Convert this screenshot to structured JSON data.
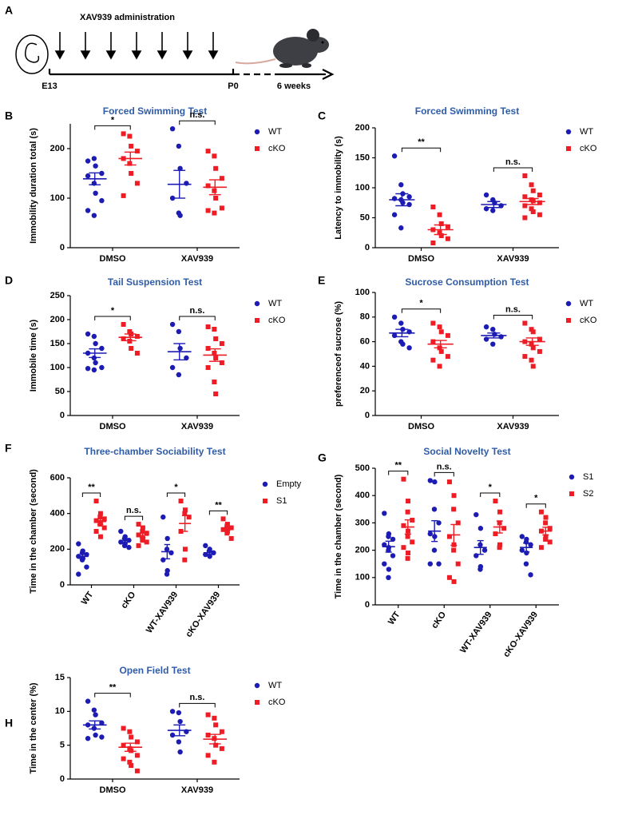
{
  "timeline": {
    "panel_label": "A",
    "title": "XAV939 administration",
    "start": "E13",
    "birth": "P0",
    "end": "6 weeks"
  },
  "chart_data": [
    {
      "type": "scatter",
      "panel_label": "B",
      "title": "Forced Swimming Test",
      "y_label": "Immobility duration total (s)",
      "categories": [
        "DMSO",
        "XAV939"
      ],
      "series": [
        {
          "name": "WT",
          "color": "#1c1cb4",
          "marker": "circle",
          "values": [
            [
              175,
              180,
              165,
              150,
              145,
              130,
              110,
              95,
              75,
              65
            ],
            [
              240,
              205,
              160,
              130,
              100,
              70,
              65
            ]
          ],
          "mean": [
            139,
            128
          ],
          "sem": [
            12,
            28
          ]
        },
        {
          "name": "cKO",
          "color": "#ee1c25",
          "marker": "square",
          "values": [
            [
              230,
              225,
              205,
              195,
              180,
              170,
              150,
              130,
              105
            ],
            [
              195,
              185,
              160,
              140,
              125,
              115,
              100,
              80,
              75,
              70
            ]
          ],
          "mean": [
            180,
            122
          ],
          "sem": [
            13,
            15
          ]
        }
      ],
      "significance": [
        "*",
        "n.s."
      ],
      "ylim": [
        0,
        250
      ],
      "yticks": [
        0,
        100,
        200
      ]
    },
    {
      "type": "scatter",
      "panel_label": "C",
      "title": "Forced Swimming Test",
      "y_label": "Latency to immobility (s)",
      "categories": [
        "DMSO",
        "XAV939"
      ],
      "series": [
        {
          "name": "WT",
          "color": "#1c1cb4",
          "marker": "circle",
          "values": [
            [
              153,
              105,
              90,
              85,
              82,
              80,
              75,
              72,
              55,
              33
            ],
            [
              88,
              80,
              75,
              70,
              65,
              62
            ]
          ],
          "mean": [
            80,
            72
          ],
          "sem": [
            10,
            5
          ]
        },
        {
          "name": "cKO",
          "color": "#ee1c25",
          "marker": "square",
          "values": [
            [
              68,
              55,
              40,
              35,
              30,
              25,
              20,
              15,
              8
            ],
            [
              120,
              105,
              95,
              88,
              85,
              80,
              78,
              75,
              70,
              65,
              60,
              55,
              50
            ]
          ],
          "mean": [
            30,
            77
          ],
          "sem": [
            8,
            5
          ]
        }
      ],
      "significance": [
        "**",
        "n.s."
      ],
      "ylim": [
        0,
        200
      ],
      "yticks": [
        0,
        50,
        100,
        150,
        200
      ]
    },
    {
      "type": "scatter",
      "panel_label": "D",
      "title": "Tail Suspension Test",
      "y_label": "Immobile time (s)",
      "categories": [
        "DMSO",
        "XAV939"
      ],
      "series": [
        {
          "name": "WT",
          "color": "#1c1cb4",
          "marker": "circle",
          "values": [
            [
              170,
              165,
              150,
              140,
              130,
              120,
              110,
              100,
              98,
              95
            ],
            [
              190,
              175,
              140,
              120,
              100,
              85
            ]
          ],
          "mean": [
            130,
            133
          ],
          "sem": [
            9,
            17
          ]
        },
        {
          "name": "cKO",
          "color": "#ee1c25",
          "marker": "square",
          "values": [
            [
              190,
              175,
              170,
              165,
              160,
              155,
              140,
              130
            ],
            [
              185,
              180,
              160,
              150,
              140,
              130,
              120,
              110,
              100,
              70,
              45
            ]
          ],
          "mean": [
            163,
            126
          ],
          "sem": [
            7,
            13
          ]
        }
      ],
      "significance": [
        "*",
        "n.s."
      ],
      "ylim": [
        0,
        250
      ],
      "yticks": [
        0,
        50,
        100,
        150,
        200,
        250
      ]
    },
    {
      "type": "scatter",
      "panel_label": "E",
      "title": "Sucrose Consumption Test",
      "y_label": "preferenceof sucrose (%)",
      "categories": [
        "DMSO",
        "XAV939"
      ],
      "series": [
        {
          "name": "WT",
          "color": "#1c1cb4",
          "marker": "circle",
          "values": [
            [
              80,
              75,
              70,
              68,
              65,
              60,
              58,
              55
            ],
            [
              72,
              70,
              66,
              64,
              62,
              58
            ]
          ],
          "mean": [
            67,
            65
          ],
          "sem": [
            3,
            2
          ]
        },
        {
          "name": "cKO",
          "color": "#ee1c25",
          "marker": "square",
          "values": [
            [
              75,
              72,
              68,
              65,
              60,
              55,
              52,
              48,
              45,
              40
            ],
            [
              75,
              70,
              68,
              62,
              60,
              58,
              55,
              52,
              48,
              45,
              40
            ]
          ],
          "mean": [
            58,
            60
          ],
          "sem": [
            3,
            3
          ]
        }
      ],
      "significance": [
        "*",
        "n.s."
      ],
      "ylim": [
        0,
        100
      ],
      "yticks": [
        0,
        20,
        40,
        60,
        80,
        100
      ]
    },
    {
      "type": "scatter",
      "panel_label": "F",
      "title": "Three-chamber Sociability Test",
      "y_label": "Time in the chamber (second)",
      "categories": [
        "WT",
        "cKO",
        "WT-XAV939",
        "cKO-XAV939"
      ],
      "series": [
        {
          "name": "Empty",
          "color": "#1c1cb4",
          "marker": "circle",
          "values": [
            [
              230,
              190,
              180,
              170,
              160,
              150,
              140,
              100,
              60
            ],
            [
              300,
              270,
              260,
              250,
              240,
              230,
              220,
              210
            ],
            [
              380,
              260,
              200,
              180,
              140,
              80,
              60
            ],
            [
              220,
              200,
              190,
              180,
              170,
              160
            ]
          ],
          "mean": [
            160,
            248,
            186,
            180
          ],
          "sem": [
            15,
            11,
            40,
            9
          ]
        },
        {
          "name": "S1",
          "color": "#ee1c25",
          "marker": "square",
          "values": [
            [
              470,
              400,
              380,
              370,
              360,
              350,
              340,
              320,
              300,
              270
            ],
            [
              340,
              320,
              300,
              290,
              280,
              260,
              250,
              240,
              220
            ],
            [
              470,
              420,
              400,
              380,
              300,
              200,
              140
            ],
            [
              370,
              340,
              330,
              320,
              310,
              300,
              290,
              260
            ]
          ],
          "mean": [
            355,
            278,
            344,
            315
          ],
          "sem": [
            17,
            13,
            44,
            12
          ]
        }
      ],
      "significance": [
        "**",
        "n.s.",
        "*",
        "**"
      ],
      "ylim": [
        0,
        600
      ],
      "yticks": [
        0,
        200,
        400,
        600
      ]
    },
    {
      "type": "scatter",
      "panel_label": "G",
      "title": "Social Novelty Test",
      "y_label": "Time in the chamber (second)",
      "categories": [
        "WT",
        "cKO",
        "WT-XAV939",
        "cKO-XAV939"
      ],
      "series": [
        {
          "name": "S1",
          "color": "#1c1cb4",
          "marker": "circle",
          "values": [
            [
              335,
              260,
              250,
              240,
              220,
              210,
              200,
              180,
              150,
              130,
              100
            ],
            [
              455,
              450,
              350,
              300,
              260,
              250,
              200,
              150,
              150
            ],
            [
              330,
              280,
              220,
              200,
              180,
              140,
              130
            ],
            [
              250,
              240,
              230,
              220,
              200,
              190,
              150,
              110
            ]
          ],
          "mean": [
            213,
            270,
            210,
            210
          ],
          "sem": [
            20,
            38,
            25,
            16
          ]
        },
        {
          "name": "S2",
          "color": "#ee1c25",
          "marker": "square",
          "values": [
            [
              460,
              380,
              340,
              310,
              290,
              270,
              250,
              230,
              210,
              190,
              170
            ],
            [
              450,
              400,
              350,
              300,
              250,
              220,
              200,
              150,
              100,
              85
            ],
            [
              380,
              340,
              300,
              280,
              260,
              220,
              210
            ],
            [
              340,
              320,
              300,
              280,
              270,
              250,
              240,
              230,
              210
            ]
          ],
          "mean": [
            285,
            256,
            285,
            270
          ],
          "sem": [
            26,
            38,
            22,
            14
          ]
        }
      ],
      "significance": [
        "**",
        "n.s.",
        "*",
        "*"
      ],
      "ylim": [
        0,
        500
      ],
      "yticks": [
        0,
        100,
        200,
        300,
        400,
        500
      ]
    },
    {
      "type": "scatter",
      "panel_label": "H",
      "title": "Open Field Test",
      "y_label": "Time in the center (%)",
      "categories": [
        "DMSO",
        "XAV939"
      ],
      "series": [
        {
          "name": "WT",
          "color": "#1c1cb4",
          "marker": "circle",
          "values": [
            [
              11.5,
              10.2,
              9.5,
              8.3,
              8,
              7.5,
              6.5,
              6.2,
              6.0
            ],
            [
              10,
              9.8,
              8.5,
              7,
              6.5,
              5.5,
              4
            ]
          ],
          "mean": [
            8.0,
            7.2
          ],
          "sem": [
            0.6,
            0.8
          ]
        },
        {
          "name": "cKO",
          "color": "#ee1c25",
          "marker": "square",
          "values": [
            [
              7.5,
              7.0,
              6.2,
              5.5,
              5.0,
              4.5,
              4.2,
              3.5,
              3.0,
              2.5,
              2.0,
              1.2
            ],
            [
              9.5,
              9,
              8,
              7,
              6.5,
              6,
              5,
              4.5,
              3.5,
              2.5
            ]
          ],
          "mean": [
            4.7,
            5.9
          ],
          "sem": [
            0.6,
            0.7
          ]
        }
      ],
      "significance": [
        "**",
        "n.s."
      ],
      "ylim": [
        0,
        15
      ],
      "yticks": [
        0,
        5,
        10,
        15
      ]
    }
  ]
}
